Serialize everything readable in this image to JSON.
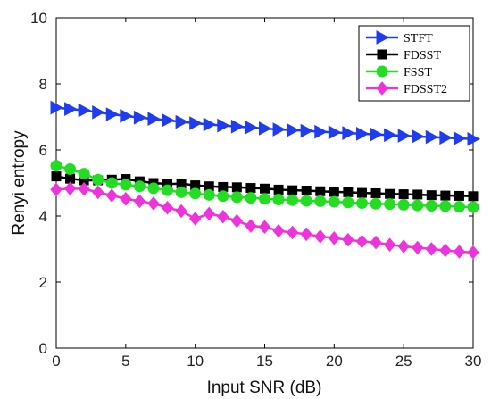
{
  "chart_data": {
    "type": "line",
    "title": "",
    "xlabel": "Input SNR (dB)",
    "ylabel": "Renyi entropy",
    "xlim": [
      0,
      30
    ],
    "ylim": [
      0,
      10
    ],
    "xticks": [
      0,
      5,
      10,
      15,
      20,
      25,
      30
    ],
    "yticks": [
      0,
      2,
      4,
      6,
      8,
      10
    ],
    "grid": false,
    "legend_position": "top-right",
    "x": [
      0,
      1,
      2,
      3,
      4,
      5,
      6,
      7,
      8,
      9,
      10,
      11,
      12,
      13,
      14,
      15,
      16,
      17,
      18,
      19,
      20,
      21,
      22,
      23,
      24,
      25,
      26,
      27,
      28,
      29,
      30
    ],
    "series": [
      {
        "name": "STFT",
        "color": "#1f3cf0",
        "marker": "triangle-right",
        "values": [
          7.28,
          7.24,
          7.2,
          7.14,
          7.08,
          7.03,
          6.98,
          6.94,
          6.9,
          6.85,
          6.81,
          6.77,
          6.74,
          6.71,
          6.68,
          6.65,
          6.62,
          6.6,
          6.58,
          6.55,
          6.53,
          6.51,
          6.49,
          6.47,
          6.45,
          6.43,
          6.41,
          6.39,
          6.37,
          6.35,
          6.33
        ]
      },
      {
        "name": "FDSST",
        "color": "#000000",
        "marker": "square",
        "values": [
          5.2,
          5.13,
          5.08,
          5.08,
          5.1,
          5.12,
          5.05,
          5.0,
          4.97,
          4.98,
          4.93,
          4.9,
          4.88,
          4.87,
          4.85,
          4.83,
          4.8,
          4.78,
          4.77,
          4.75,
          4.73,
          4.72,
          4.7,
          4.69,
          4.67,
          4.66,
          4.65,
          4.63,
          4.62,
          4.61,
          4.6
        ]
      },
      {
        "name": "FSST",
        "color": "#22dd22",
        "marker": "circle",
        "values": [
          5.52,
          5.42,
          5.28,
          5.1,
          5.0,
          4.95,
          4.9,
          4.84,
          4.78,
          4.72,
          4.68,
          4.64,
          4.6,
          4.57,
          4.55,
          4.52,
          4.5,
          4.48,
          4.46,
          4.45,
          4.43,
          4.41,
          4.39,
          4.37,
          4.36,
          4.34,
          4.32,
          4.31,
          4.3,
          4.28,
          4.27
        ]
      },
      {
        "name": "FDSST2",
        "color": "#ee33dd",
        "marker": "diamond",
        "values": [
          4.8,
          4.83,
          4.82,
          4.72,
          4.62,
          4.52,
          4.45,
          4.38,
          4.25,
          4.15,
          3.92,
          4.07,
          3.98,
          3.85,
          3.7,
          3.67,
          3.55,
          3.5,
          3.45,
          3.38,
          3.33,
          3.28,
          3.23,
          3.2,
          3.13,
          3.08,
          3.04,
          3.0,
          2.96,
          2.92,
          2.9
        ]
      }
    ]
  }
}
